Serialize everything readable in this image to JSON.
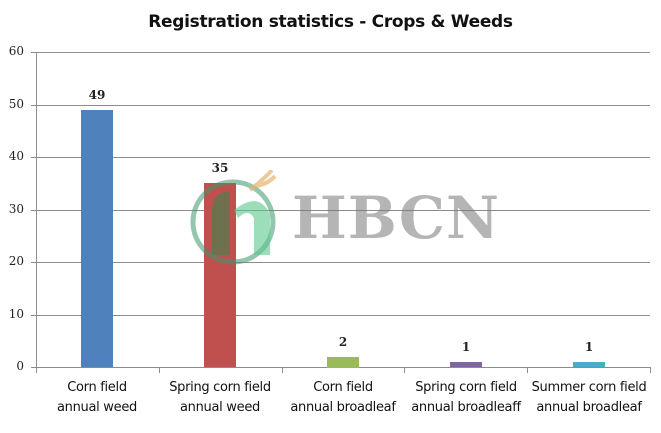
{
  "title": "Registration statistics - Crops & Weeds",
  "watermark": "HBCN",
  "chart_data": {
    "type": "bar",
    "title": "Registration statistics - Crops & Weeds",
    "xlabel": "",
    "ylabel": "",
    "ylim": [
      0,
      60
    ],
    "yticks": [
      0,
      10,
      20,
      30,
      40,
      50,
      60
    ],
    "grid": true,
    "legend": "none",
    "categories": [
      "Corn field annual weed",
      "Spring corn field annual weed",
      "Corn field annual broadleaf",
      "Spring corn field annual broadleaff",
      "Summer corn field annual broadleaf"
    ],
    "category_lines": [
      [
        "Corn field",
        "annual weed"
      ],
      [
        "Spring corn field",
        "annual weed"
      ],
      [
        "Corn field",
        "annual broadleaf"
      ],
      [
        "Spring corn field",
        "annual broadleaff"
      ],
      [
        "Summer corn field",
        "annual broadleaf"
      ]
    ],
    "values": [
      49,
      35,
      2,
      1,
      1
    ],
    "data_labels": [
      "49",
      "35",
      "2",
      "1",
      "1"
    ],
    "colors": [
      "#4f81bd",
      "#c0504d",
      "#9bbb59",
      "#8064a2",
      "#4bacc6"
    ]
  }
}
